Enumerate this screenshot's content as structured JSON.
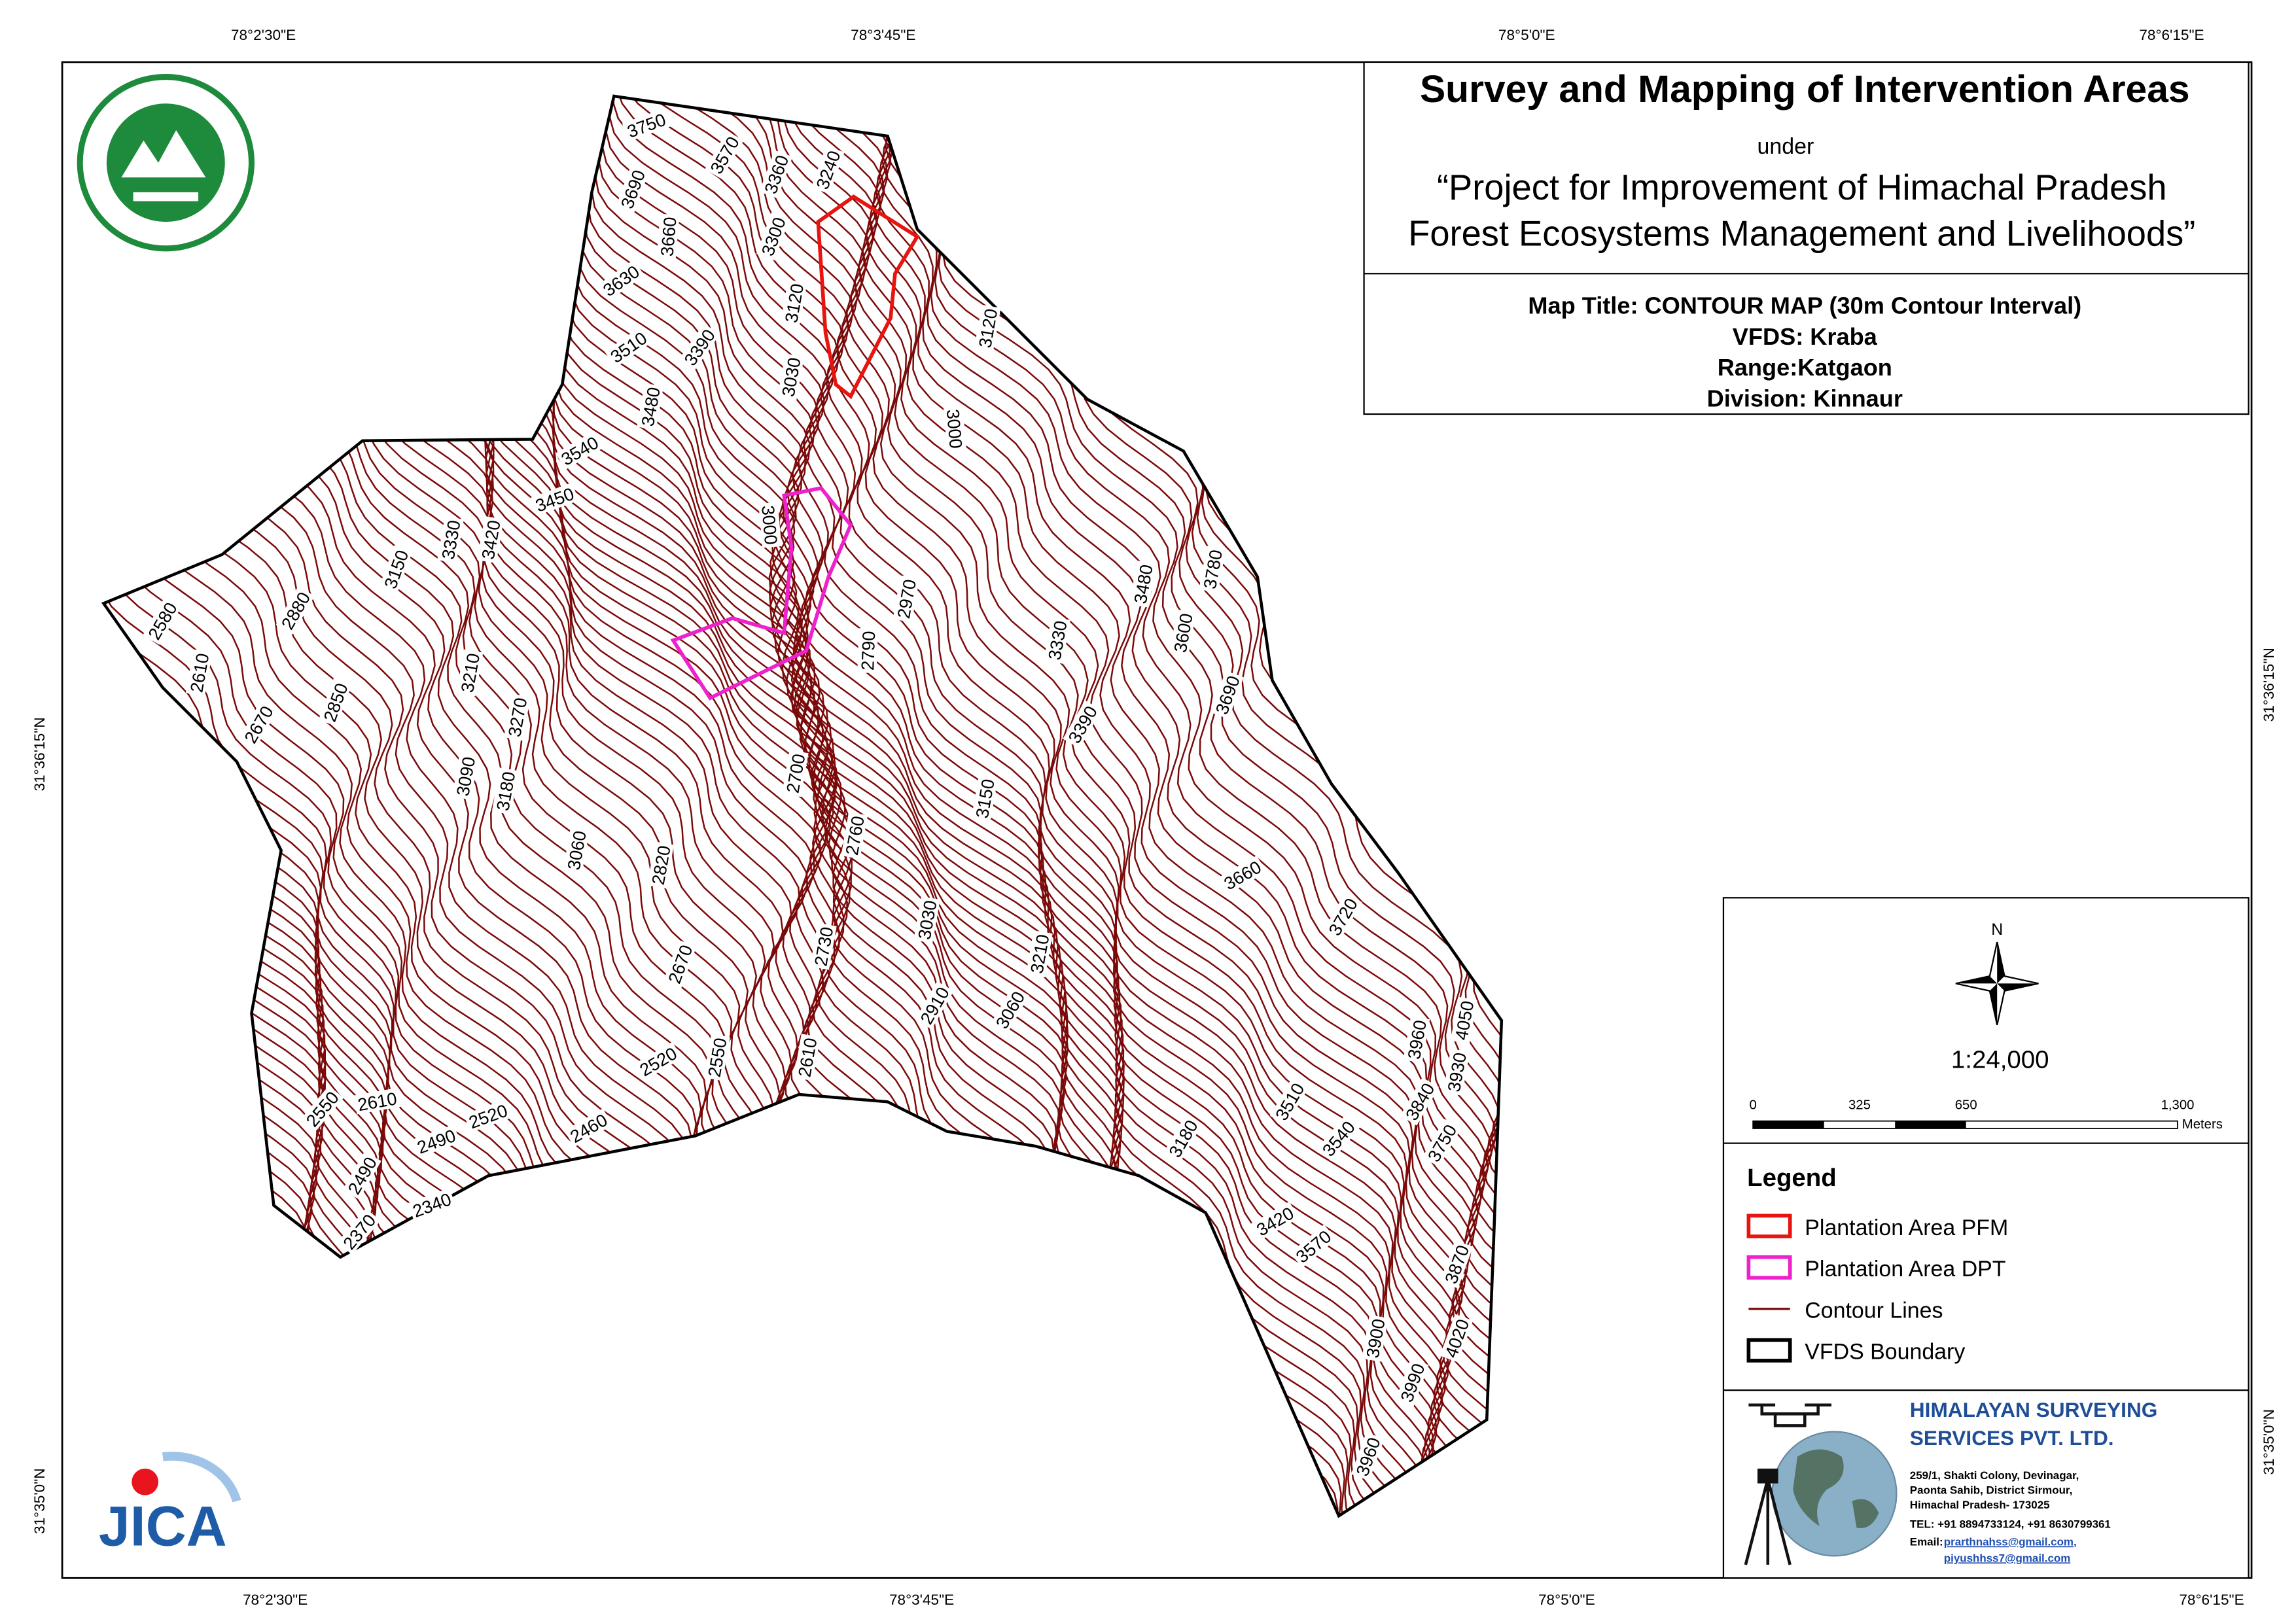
{
  "map_labels": {
    "top": [
      "78°2'30\"E",
      "78°3'45\"E",
      "78°5'0\"E",
      "78°6'15\"E"
    ],
    "bottom": [
      "78°2'30\"E",
      "78°3'45\"E",
      "78°5'0\"E",
      "78°6'15\"E"
    ],
    "left": [
      "31°36'15\"N",
      "31°35'0\"N"
    ],
    "right": [
      "31°36'15\"N",
      "31°35'0\"N"
    ]
  },
  "title_block": {
    "title": "Survey and Mapping of Intervention Areas",
    "under": "under",
    "project_line1": "“Project for Improvement of Himachal Pradesh",
    "project_line2": "Forest Ecosystems Management and Livelihoods”",
    "map_title": "Map Title: CONTOUR MAP (30m Contour Interval)",
    "vfds": "VFDS:  Kraba",
    "range": "Range:Katgaon",
    "division": "Division: Kinnaur"
  },
  "contour_labels": [
    "3750",
    "3690",
    "3570",
    "3360",
    "3240",
    "3660",
    "3300",
    "3630",
    "3120",
    "3510",
    "3390",
    "3030",
    "3480",
    "3540",
    "3450",
    "3330",
    "3420",
    "3150",
    "2880",
    "2580",
    "2610",
    "2670",
    "2850",
    "3210",
    "3270",
    "3090",
    "3180",
    "3060",
    "2820",
    "2700",
    "2790",
    "3000",
    "2970",
    "3120",
    "3000",
    "3480",
    "3600",
    "3780",
    "3690",
    "3330",
    "3390",
    "3150",
    "2760",
    "3030",
    "2730",
    "2670",
    "3210",
    "2910",
    "3060",
    "3660",
    "3720",
    "3960",
    "4050",
    "3930",
    "3840",
    "3750",
    "3510",
    "3540",
    "3180",
    "2610",
    "2550",
    "2520",
    "2460",
    "2520",
    "2490",
    "2610",
    "2550",
    "2490",
    "2370",
    "2340",
    "3420",
    "3570",
    "3870",
    "3900",
    "4020",
    "3990",
    "3960"
  ],
  "north": "N",
  "scale": "1:24,000",
  "scale_bar": {
    "ticks": [
      "0",
      "325",
      "650",
      "1,300"
    ],
    "unit": "Meters"
  },
  "legend": {
    "title": "Legend",
    "items": [
      "Plantation Area PFM",
      "Plantation Area DPT",
      "Contour Lines",
      "VFDS Boundary"
    ]
  },
  "company": {
    "name_line1": "HIMALAYAN SURVEYING",
    "name_line2": "SERVICES PVT. LTD.",
    "address": [
      "259/1, Shakti Colony, Devinagar,",
      "Paonta Sahib, District Sirmour,",
      "Himachal Pradesh- 173025",
      "TEL: +91 8894733124, +91 8630799361"
    ],
    "email_label": "Email:",
    "emails": [
      "prarthnahss@gmail.com,",
      "piyushhss7@gmail.com"
    ]
  },
  "jica": "JICA"
}
